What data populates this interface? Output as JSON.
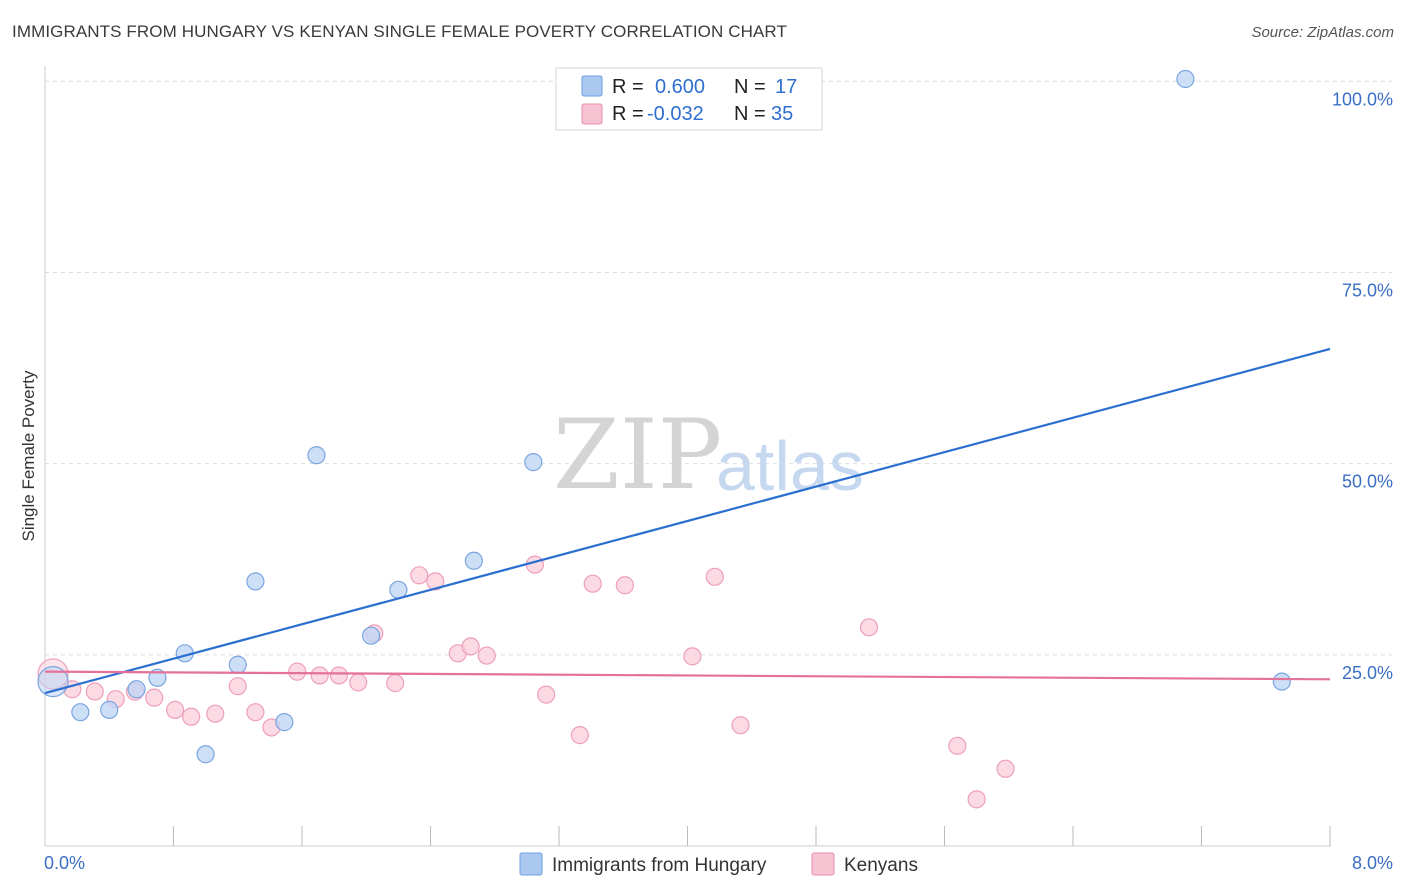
{
  "header": {
    "title": "IMMIGRANTS FROM HUNGARY VS KENYAN SINGLE FEMALE POVERTY CORRELATION CHART",
    "source": "Source: ZipAtlas.com"
  },
  "legend_box": {
    "rows": [
      {
        "r_label": "R =",
        "r_value": "0.600",
        "n_label": "N =",
        "n_value": "17",
        "color": "#aac8f0",
        "border": "#6e9fe0"
      },
      {
        "r_label": "R =",
        "r_value": "-0.032",
        "n_label": "N =",
        "n_value": "35",
        "color": "#f7c2d2",
        "border": "#ec8fae"
      }
    ]
  },
  "watermark": {
    "zip": "ZIP",
    "atlas": "atlas"
  },
  "colors": {
    "hungary_fill": "#bcd4f4",
    "hungary_stroke": "#7aa5e0",
    "hungary_line": "#2b6fd1",
    "kenyan_fill": "#f9cddb",
    "kenyan_stroke": "#ee9fba",
    "kenyan_line": "#e4719a",
    "grid": "#dddddd",
    "axis_label": "#3a6fc4"
  },
  "chart_data": {
    "type": "scatter",
    "title": "IMMIGRANTS FROM HUNGARY VS KENYAN SINGLE FEMALE POVERTY CORRELATION CHART",
    "xlabel": "",
    "ylabel": "Single Female Poverty",
    "xlim": [
      0,
      8
    ],
    "ylim": [
      0,
      103
    ],
    "x_tick_labels": [
      {
        "value": 0,
        "label": "0.0%"
      },
      {
        "value": 8,
        "label": "8.0%"
      }
    ],
    "x_minor_ticks": [
      0.8,
      1.6,
      2.4,
      3.2,
      4.0,
      4.8,
      5.6,
      6.4,
      7.2,
      8.0
    ],
    "y_ticks": [
      {
        "value": 25,
        "label": "25.0%"
      },
      {
        "value": 50,
        "label": "50.0%"
      },
      {
        "value": 75,
        "label": "75.0%"
      },
      {
        "value": 100,
        "label": "100.0%"
      }
    ],
    "grid": true,
    "legend_position": "bottom",
    "series": [
      {
        "name": "Immigrants from Hungary",
        "R": 0.6,
        "N": 17,
        "points": [
          [
            0.05,
            21.5
          ],
          [
            0.22,
            17.5
          ],
          [
            0.4,
            17.8
          ],
          [
            0.57,
            20.5
          ],
          [
            0.7,
            22
          ],
          [
            0.87,
            25.2
          ],
          [
            1.0,
            12
          ],
          [
            1.2,
            23.7
          ],
          [
            1.31,
            34.6
          ],
          [
            1.49,
            16.2
          ],
          [
            1.69,
            51.1
          ],
          [
            2.03,
            27.5
          ],
          [
            2.2,
            33.5
          ],
          [
            2.67,
            37.3
          ],
          [
            3.04,
            50.2
          ],
          [
            7.1,
            100.3
          ],
          [
            7.7,
            21.5
          ]
        ],
        "trend": {
          "x": [
            0,
            8
          ],
          "y": [
            20.0,
            65.0
          ]
        }
      },
      {
        "name": "Kenyans",
        "R": -0.032,
        "N": 35,
        "points": [
          [
            0.05,
            22.5
          ],
          [
            0.17,
            20.5
          ],
          [
            0.31,
            20.2
          ],
          [
            0.44,
            19.2
          ],
          [
            0.56,
            20.2
          ],
          [
            0.68,
            19.4
          ],
          [
            0.81,
            17.8
          ],
          [
            0.91,
            16.9
          ],
          [
            1.06,
            17.3
          ],
          [
            1.2,
            20.9
          ],
          [
            1.31,
            17.5
          ],
          [
            1.41,
            15.5
          ],
          [
            1.57,
            22.8
          ],
          [
            1.71,
            22.3
          ],
          [
            1.83,
            22.3
          ],
          [
            1.95,
            21.4
          ],
          [
            2.05,
            27.8
          ],
          [
            2.18,
            21.3
          ],
          [
            2.33,
            35.4
          ],
          [
            2.43,
            34.6
          ],
          [
            2.57,
            25.2
          ],
          [
            2.65,
            26.1
          ],
          [
            2.75,
            24.9
          ],
          [
            3.05,
            36.8
          ],
          [
            3.12,
            19.8
          ],
          [
            3.33,
            14.5
          ],
          [
            3.41,
            34.3
          ],
          [
            3.61,
            34.1
          ],
          [
            4.03,
            24.8
          ],
          [
            4.17,
            35.2
          ],
          [
            4.33,
            15.8
          ],
          [
            5.13,
            28.6
          ],
          [
            5.68,
            13.1
          ],
          [
            5.8,
            6.1
          ],
          [
            5.98,
            10.1
          ]
        ],
        "trend": {
          "x": [
            0,
            8
          ],
          "y": [
            22.8,
            21.8
          ]
        }
      }
    ]
  }
}
